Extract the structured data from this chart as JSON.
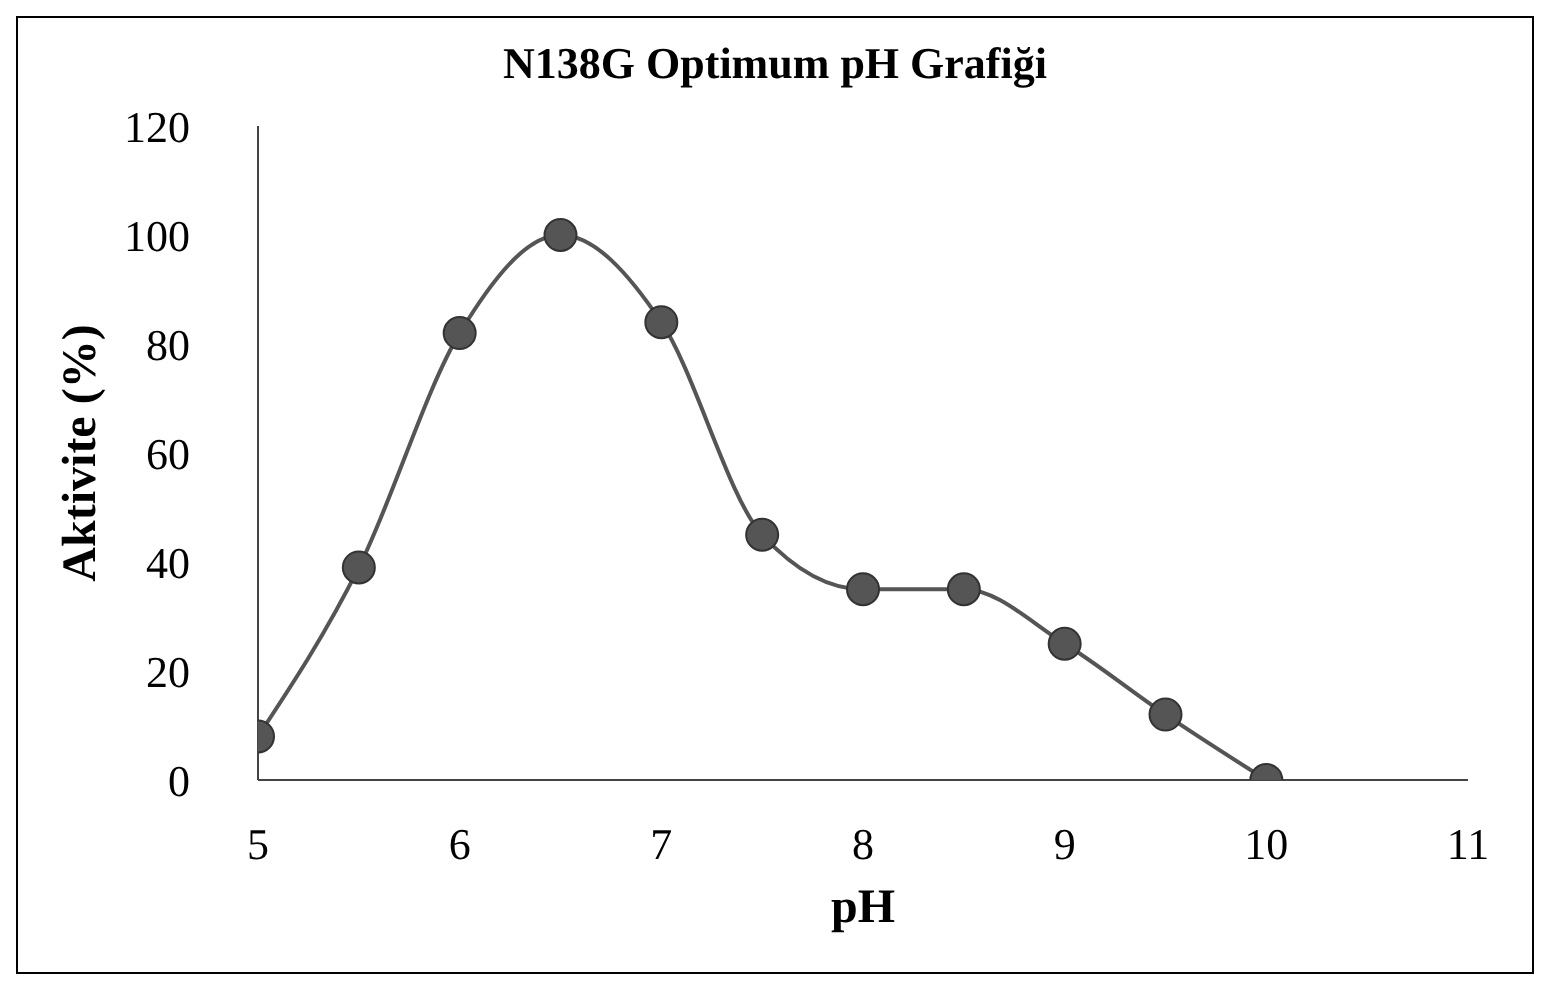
{
  "chart_data": {
    "type": "line",
    "title": "N138G Optimum pH Grafiği",
    "xlabel": "pH",
    "ylabel": "Aktivite (%)",
    "x": [
      5,
      5.5,
      6,
      6.5,
      7,
      7.5,
      8,
      8.5,
      9,
      9.5,
      10
    ],
    "series": [
      {
        "color": "#555555",
        "values": [
          8,
          39,
          82,
          100,
          84,
          45,
          35,
          35,
          25,
          12,
          0
        ]
      }
    ],
    "xlim": [
      5,
      11
    ],
    "xticks": [
      5,
      6,
      7,
      8,
      9,
      10,
      11
    ],
    "ylim": [
      0,
      120
    ],
    "yticks": [
      0,
      20,
      40,
      60,
      80,
      100,
      120
    ],
    "grid": false,
    "marker": "circle",
    "line_style": "solid"
  }
}
